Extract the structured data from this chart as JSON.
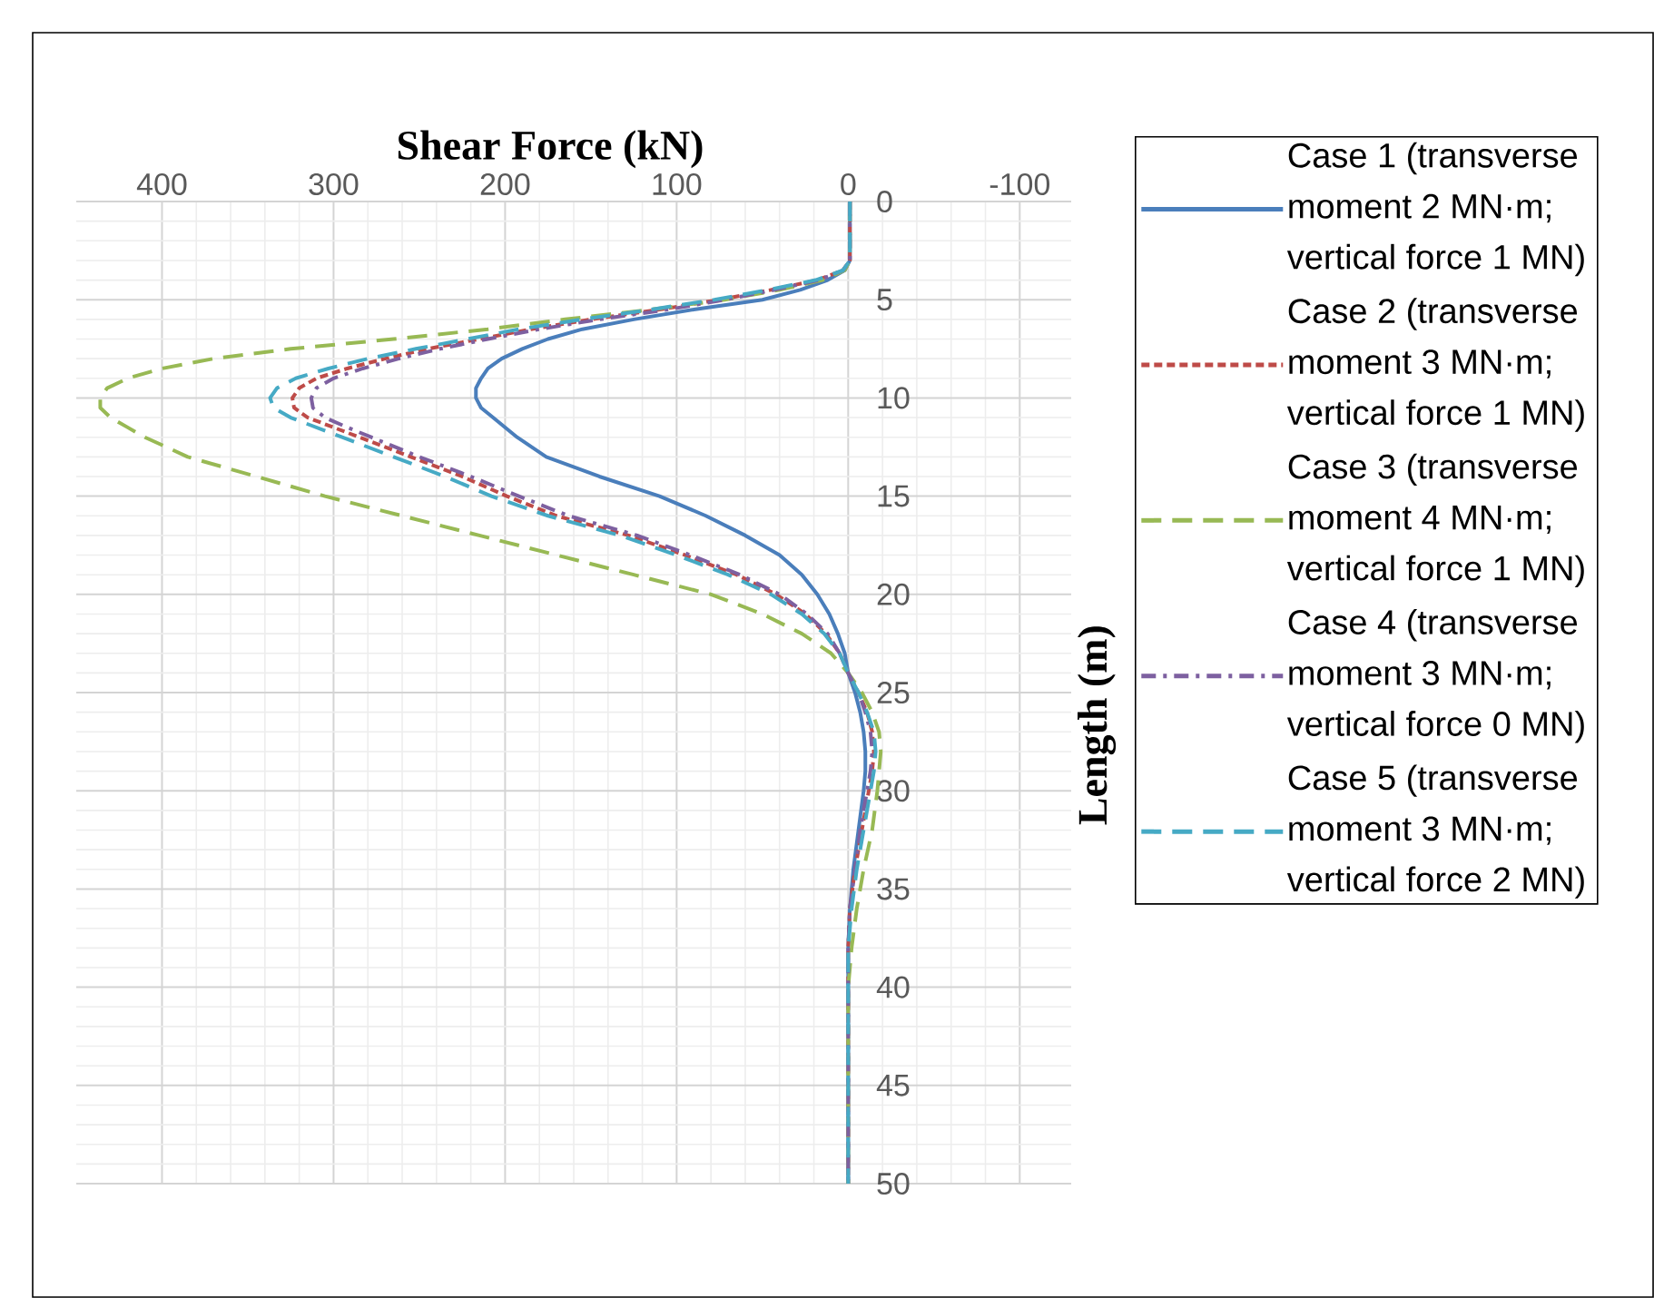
{
  "chart_data": {
    "type": "line",
    "xlabel": "Shear Force (kN)",
    "ylabel": "Length (m)",
    "xlim": [
      450,
      -130
    ],
    "ylim": [
      50,
      0
    ],
    "xticks": [
      400,
      300,
      200,
      100,
      0,
      -100
    ],
    "yticks": [
      0,
      5,
      10,
      15,
      20,
      25,
      30,
      35,
      40,
      45,
      50
    ],
    "grid": true,
    "legend": "right",
    "marker": "none",
    "series": [
      {
        "name": "Case 1 (transverse moment 2 MN·m; vertical force 1 MN)",
        "color": "#4a7ebb",
        "line_style": "solid",
        "x": [
          -1,
          -1,
          2,
          12,
          28,
          50,
          90,
          125,
          155,
          175,
          190,
          202,
          210,
          214,
          217,
          217,
          214,
          207,
          200,
          193,
          176,
          145,
          110,
          83,
          60,
          40,
          27,
          18,
          11,
          6,
          2,
          0,
          -4,
          -7,
          -9,
          -10,
          -10,
          -9,
          -6,
          -3,
          -1,
          0,
          0
        ],
        "values": [
          0,
          3,
          3.5,
          4,
          4.5,
          5,
          5.5,
          6,
          6.5,
          7,
          7.5,
          8,
          8.5,
          9,
          9.5,
          10,
          10.5,
          11,
          11.5,
          12,
          13,
          14,
          15,
          16,
          17,
          18,
          19,
          20,
          21,
          22,
          23,
          24,
          25,
          26,
          27,
          28,
          29,
          30,
          32,
          34,
          36,
          38,
          50
        ]
      },
      {
        "name": "Case 2 (transverse moment 3 MN·m; vertical force 1 MN)",
        "color": "#be4b48",
        "line_style": "dashed",
        "x": [
          -1,
          -1,
          3,
          18,
          45,
          75,
          110,
          150,
          185,
          215,
          245,
          270,
          292,
          310,
          320,
          324,
          323,
          315,
          300,
          285,
          255,
          225,
          199,
          170,
          128,
          95,
          65,
          42,
          25,
          13,
          5,
          0,
          -6,
          -11,
          -14,
          -15,
          -14,
          -12,
          -8,
          -4,
          -1,
          0,
          0
        ],
        "values": [
          0,
          3,
          3.5,
          4,
          4.5,
          5,
          5.5,
          6,
          6.5,
          7,
          7.5,
          8,
          8.5,
          9,
          9.5,
          10,
          10.5,
          11,
          11.5,
          12,
          13,
          14,
          15,
          16,
          17,
          18,
          19,
          20,
          21,
          22,
          23,
          24,
          25,
          26,
          27,
          28,
          29,
          30,
          32,
          34,
          36,
          38,
          50
        ]
      },
      {
        "name": "Case 3 (transverse moment 4 MN·m; vertical force 1 MN)",
        "color": "#98b954",
        "line_style": "longdashed",
        "x": [
          -1,
          -1,
          2,
          15,
          40,
          72,
          115,
          165,
          210,
          265,
          325,
          370,
          400,
          420,
          432,
          436,
          436,
          430,
          420,
          410,
          385,
          345,
          305,
          260,
          215,
          170,
          125,
          80,
          50,
          27,
          10,
          0,
          -8,
          -14,
          -18,
          -19,
          -17,
          -14,
          -9,
          -5,
          -2,
          0,
          0
        ],
        "values": [
          0,
          3,
          3.5,
          4,
          4.5,
          5,
          5.5,
          6,
          6.5,
          7,
          7.5,
          8,
          8.5,
          9,
          9.5,
          10,
          10.5,
          11,
          11.5,
          12,
          13,
          14,
          15,
          16,
          17,
          18,
          19,
          20,
          21,
          22,
          23,
          24,
          25,
          26,
          27,
          28,
          30,
          32,
          34,
          36,
          38,
          40,
          50
        ]
      },
      {
        "name": "Case 4 (transverse moment 3 MN·m; vertical force 0 MN)",
        "color": "#7d60a0",
        "line_style": "dashdot",
        "x": [
          -1,
          -1,
          3,
          17,
          43,
          72,
          105,
          145,
          180,
          210,
          238,
          262,
          283,
          300,
          310,
          313,
          312,
          305,
          292,
          278,
          250,
          220,
          192,
          163,
          123,
          92,
          63,
          40,
          24,
          12,
          5,
          0,
          -6,
          -10,
          -13,
          -14,
          -13,
          -11,
          -7,
          -4,
          -1,
          0,
          0
        ],
        "values": [
          0,
          3,
          3.5,
          4,
          4.5,
          5,
          5.5,
          6,
          6.5,
          7,
          7.5,
          8,
          8.5,
          9,
          9.5,
          10,
          10.5,
          11,
          11.5,
          12,
          13,
          14,
          15,
          16,
          17,
          18,
          19,
          20,
          21,
          22,
          23,
          24,
          25,
          26,
          27,
          28,
          29,
          30,
          32,
          34,
          36,
          38,
          50
        ]
      },
      {
        "name": "Case 5 (transverse moment 3 MN·m; vertical force 2 MN)",
        "color": "#46aac5",
        "line_style": "longdashed",
        "x": [
          -1,
          -1,
          3,
          19,
          47,
          78,
          115,
          155,
          192,
          222,
          252,
          280,
          303,
          322,
          333,
          337,
          335,
          325,
          310,
          295,
          265,
          235,
          208,
          175,
          133,
          100,
          70,
          45,
          27,
          14,
          5,
          0,
          -6,
          -11,
          -15,
          -16,
          -15,
          -13,
          -9,
          -5,
          -2,
          0,
          0
        ],
        "values": [
          0,
          3,
          3.5,
          4,
          4.5,
          5,
          5.5,
          6,
          6.5,
          7,
          7.5,
          8,
          8.5,
          9,
          9.5,
          10,
          10.5,
          11,
          11.5,
          12,
          13,
          14,
          15,
          16,
          17,
          18,
          19,
          20,
          21,
          22,
          23,
          24,
          25,
          26,
          27,
          28,
          29,
          30,
          32,
          34,
          36,
          38,
          50
        ]
      }
    ]
  }
}
